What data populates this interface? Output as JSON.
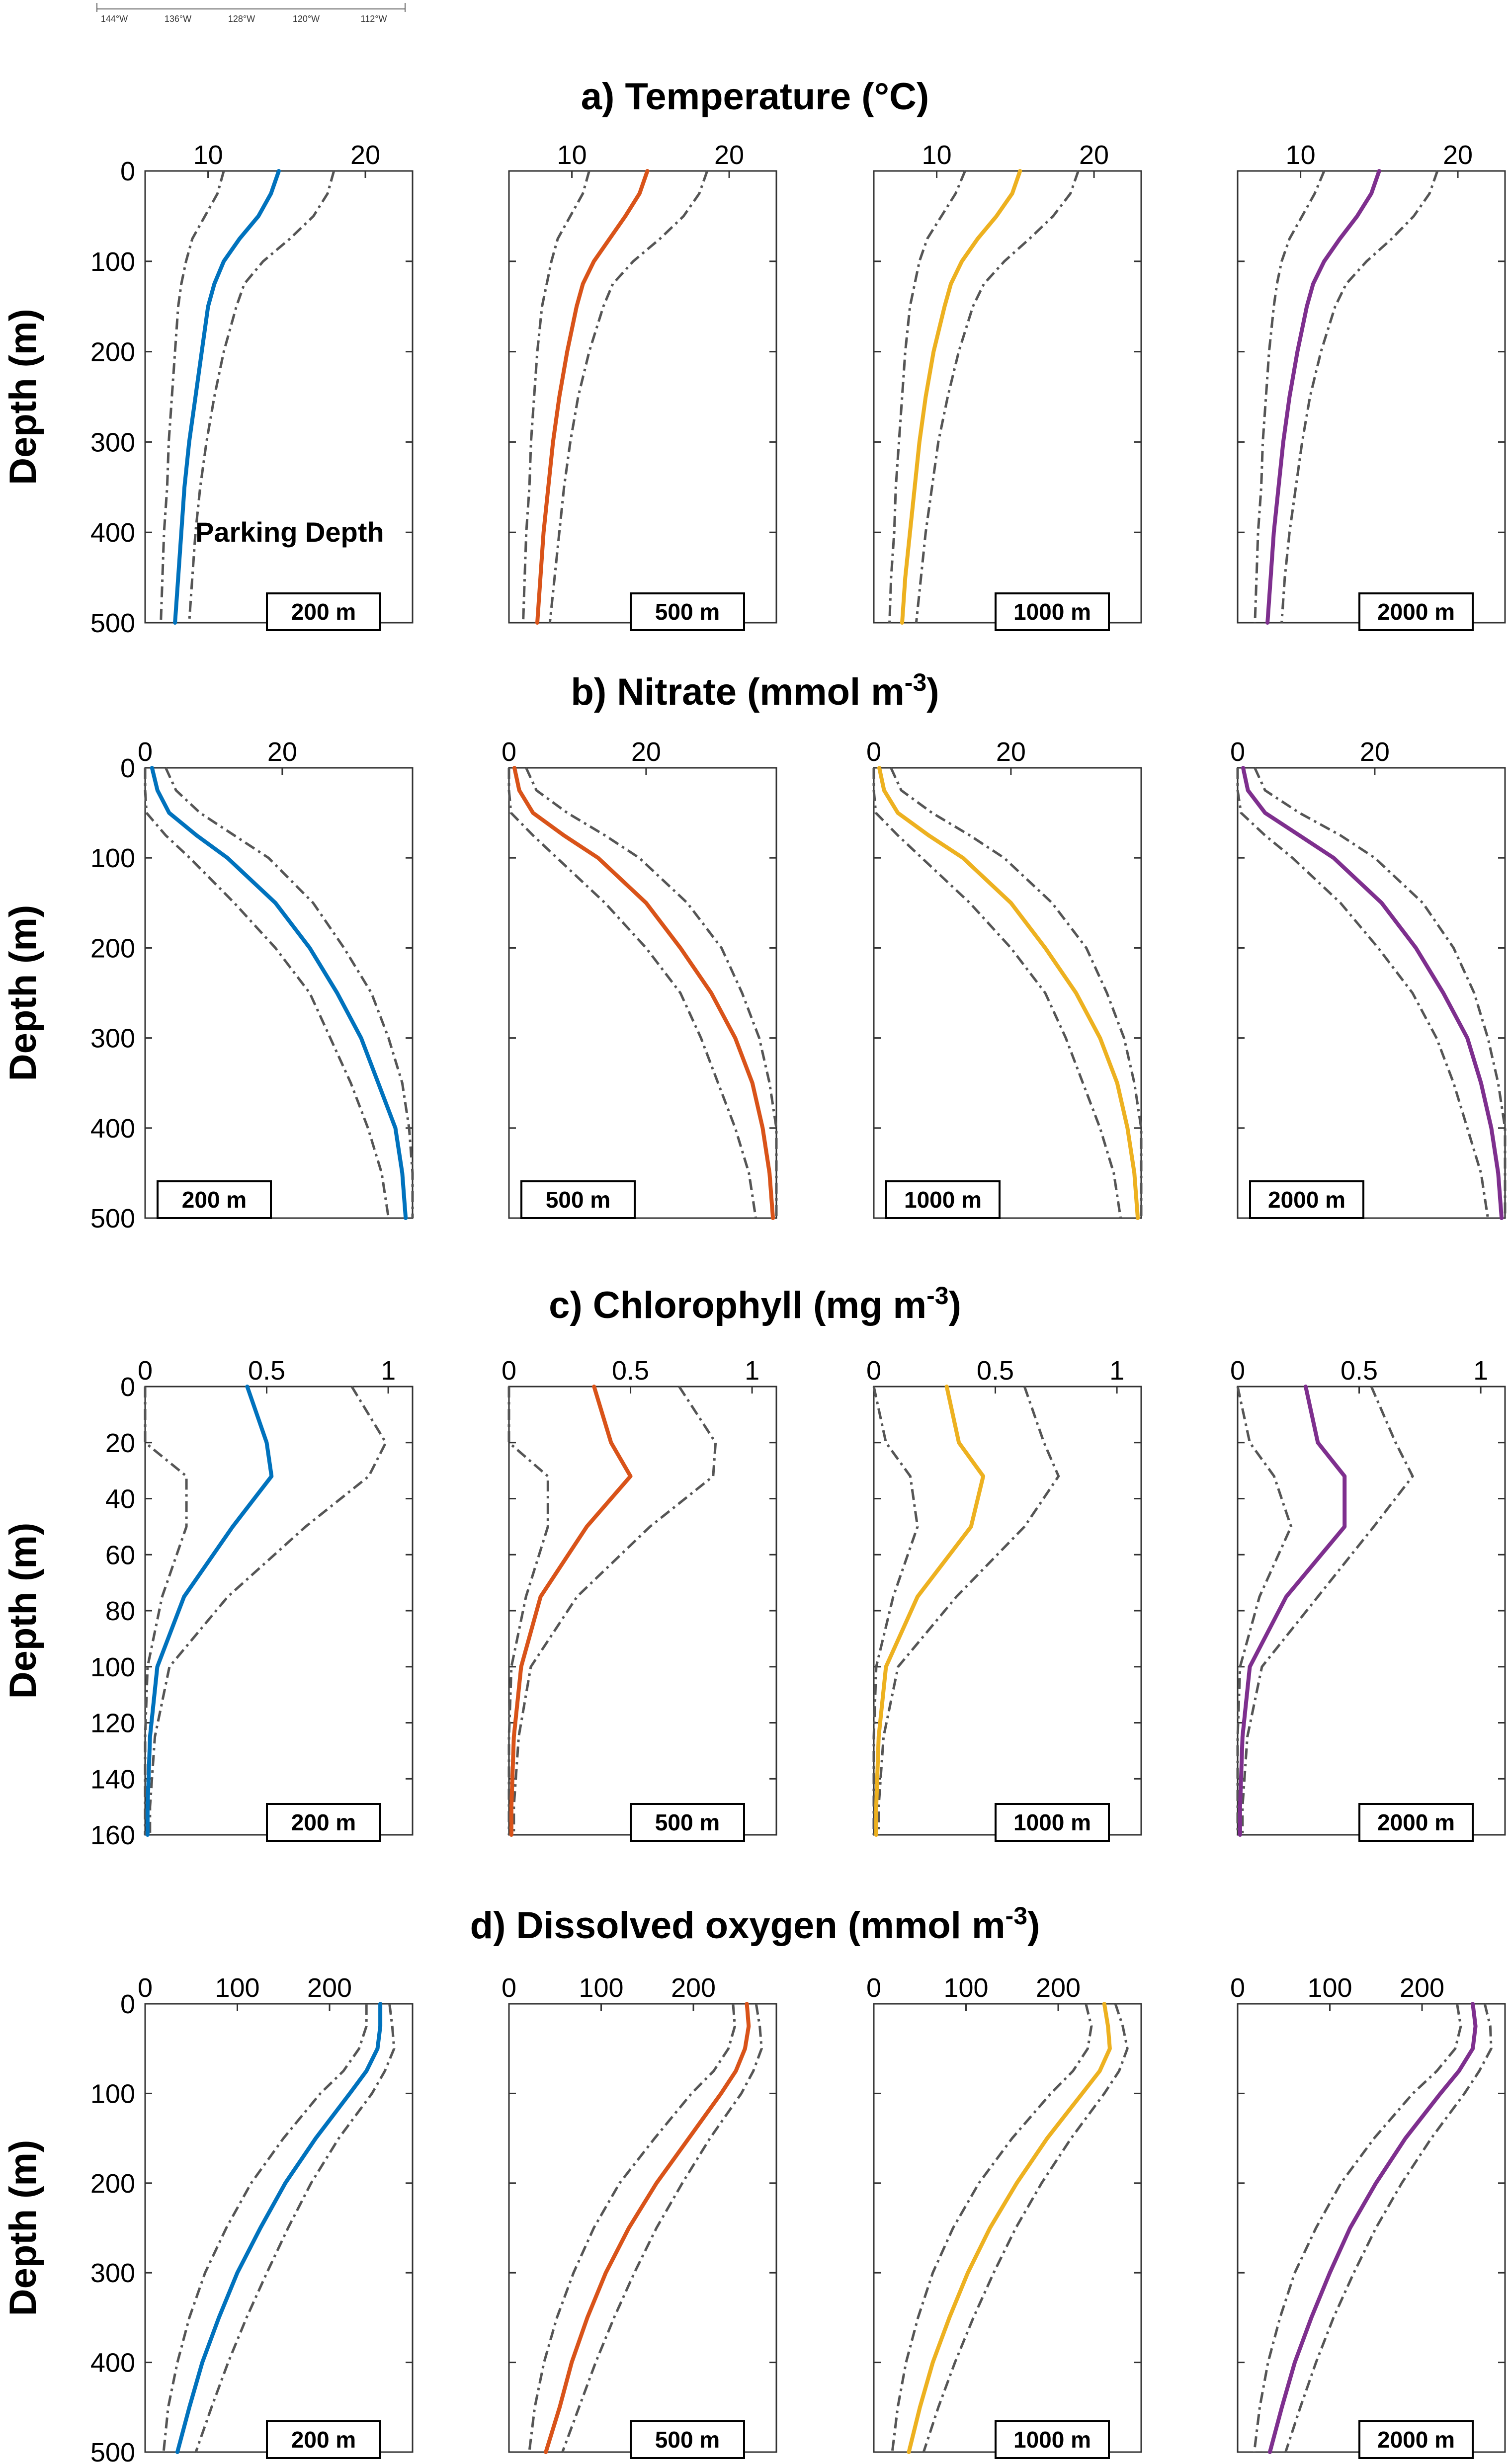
{
  "map_scale": {
    "labels": [
      "144°W",
      "136°W",
      "128°W",
      "120°W",
      "112°W"
    ]
  },
  "parking_label": "Parking Depth",
  "depth_labels": [
    "200 m",
    "500 m",
    "1000 m",
    "2000 m"
  ],
  "colors": {
    "200 m": "#0072BD",
    "500 m": "#D95319",
    "1000 m": "#EDB120",
    "2000 m": "#7E2F8E",
    "bounds": "#555555"
  },
  "chart_data": [
    {
      "type": "line",
      "title": "a) Temperature (°C)",
      "title_sup": "",
      "ylabel": "Depth (m)",
      "xlim": [
        6,
        23
      ],
      "ylim": [
        0,
        500
      ],
      "xticks": [
        10,
        20
      ],
      "yticks": [
        0,
        100,
        200,
        300,
        400,
        500
      ],
      "depth": [
        0,
        25,
        50,
        75,
        100,
        125,
        150,
        200,
        250,
        300,
        350,
        400,
        450,
        500
      ],
      "series": [
        {
          "name": "200 m",
          "mean": [
            14.5,
            14.0,
            13.2,
            12.0,
            11.0,
            10.4,
            10.0,
            9.6,
            9.2,
            8.8,
            8.5,
            8.3,
            8.1,
            7.9
          ],
          "lower": [
            11.0,
            10.6,
            9.8,
            9.0,
            8.6,
            8.3,
            8.1,
            7.9,
            7.7,
            7.5,
            7.4,
            7.2,
            7.1,
            7.0
          ],
          "upper": [
            18.0,
            17.6,
            16.7,
            15.2,
            13.5,
            12.3,
            11.8,
            11.0,
            10.4,
            9.9,
            9.5,
            9.2,
            9.0,
            8.8
          ]
        },
        {
          "name": "500 m",
          "mean": [
            14.8,
            14.3,
            13.4,
            12.4,
            11.4,
            10.7,
            10.3,
            9.7,
            9.2,
            8.8,
            8.5,
            8.2,
            8.0,
            7.8
          ],
          "lower": [
            11.1,
            10.7,
            9.9,
            9.1,
            8.7,
            8.4,
            8.1,
            7.8,
            7.6,
            7.4,
            7.3,
            7.1,
            7.0,
            6.9
          ],
          "upper": [
            18.6,
            18.1,
            17.1,
            15.6,
            13.9,
            12.6,
            12.0,
            11.1,
            10.4,
            9.9,
            9.5,
            9.2,
            8.9,
            8.6
          ]
        },
        {
          "name": "1000 m",
          "mean": [
            15.3,
            14.8,
            13.8,
            12.6,
            11.6,
            10.9,
            10.5,
            9.8,
            9.3,
            8.9,
            8.6,
            8.3,
            8.0,
            7.8
          ],
          "lower": [
            11.8,
            11.2,
            10.3,
            9.4,
            8.9,
            8.6,
            8.3,
            8.0,
            7.8,
            7.6,
            7.4,
            7.3,
            7.1,
            7.0
          ],
          "upper": [
            19.0,
            18.5,
            17.4,
            15.9,
            14.3,
            13.0,
            12.3,
            11.4,
            10.7,
            10.1,
            9.7,
            9.3,
            9.0,
            8.7
          ]
        },
        {
          "name": "2000 m",
          "mean": [
            15.0,
            14.5,
            13.6,
            12.5,
            11.5,
            10.8,
            10.4,
            9.8,
            9.3,
            8.9,
            8.6,
            8.3,
            8.1,
            7.9
          ],
          "lower": [
            11.5,
            10.9,
            10.1,
            9.3,
            8.8,
            8.5,
            8.3,
            8.0,
            7.8,
            7.6,
            7.5,
            7.3,
            7.2,
            7.1
          ],
          "upper": [
            18.7,
            18.2,
            17.2,
            15.8,
            14.2,
            12.9,
            12.2,
            11.3,
            10.6,
            10.1,
            9.7,
            9.3,
            9.0,
            8.8
          ]
        }
      ]
    },
    {
      "type": "line",
      "title": "b) Nitrate (mmol m",
      "title_sup": "-3",
      "title_end": ")",
      "ylabel": "Depth (m)",
      "xlim": [
        0,
        39
      ],
      "ylim": [
        0,
        500
      ],
      "xticks": [
        0,
        20
      ],
      "yticks": [
        0,
        100,
        200,
        300,
        400,
        500
      ],
      "depth": [
        0,
        25,
        50,
        75,
        100,
        150,
        200,
        250,
        300,
        350,
        400,
        450,
        500
      ],
      "series": [
        {
          "name": "200 m",
          "mean": [
            1.0,
            1.8,
            3.5,
            7.5,
            12.0,
            19.0,
            24.0,
            28.0,
            31.5,
            34.0,
            36.5,
            37.5,
            38.0
          ],
          "lower": [
            0.0,
            0.0,
            0.2,
            3.0,
            6.5,
            13.0,
            19.0,
            24.0,
            27.0,
            30.0,
            32.5,
            34.5,
            35.5
          ],
          "upper": [
            3.0,
            4.5,
            8.0,
            13.0,
            18.0,
            24.5,
            29.0,
            33.0,
            35.5,
            37.5,
            38.5,
            39.0,
            39.0
          ]
        },
        {
          "name": "500 m",
          "mean": [
            0.8,
            1.5,
            3.5,
            8.0,
            13.0,
            20.0,
            25.0,
            29.5,
            33.0,
            35.5,
            37.0,
            38.0,
            38.5
          ],
          "lower": [
            0.0,
            0.0,
            0.3,
            3.5,
            7.0,
            14.0,
            20.0,
            25.0,
            28.0,
            30.5,
            33.0,
            35.0,
            36.0
          ],
          "upper": [
            2.5,
            4.0,
            8.5,
            14.0,
            19.0,
            26.0,
            31.0,
            34.0,
            36.5,
            38.0,
            39.0,
            39.0,
            39.0
          ]
        },
        {
          "name": "1000 m",
          "mean": [
            0.8,
            1.5,
            3.5,
            8.0,
            13.0,
            20.0,
            25.0,
            29.5,
            33.0,
            35.5,
            37.0,
            38.0,
            38.5
          ],
          "lower": [
            0.0,
            0.0,
            0.3,
            3.5,
            7.0,
            14.0,
            20.0,
            25.0,
            28.0,
            30.5,
            33.0,
            35.0,
            36.0
          ],
          "upper": [
            2.5,
            4.0,
            8.5,
            14.0,
            19.0,
            26.0,
            31.0,
            34.0,
            36.5,
            38.0,
            39.0,
            39.0,
            39.0
          ]
        },
        {
          "name": "2000 m",
          "mean": [
            0.8,
            1.5,
            4.0,
            9.0,
            14.0,
            21.0,
            26.0,
            30.0,
            33.5,
            35.5,
            37.0,
            38.0,
            38.5
          ],
          "lower": [
            0.0,
            0.0,
            0.5,
            4.0,
            8.0,
            15.0,
            20.5,
            25.5,
            29.0,
            31.5,
            33.5,
            35.5,
            36.5
          ],
          "upper": [
            2.5,
            4.0,
            9.0,
            15.0,
            20.0,
            27.0,
            31.5,
            34.5,
            36.5,
            38.0,
            39.0,
            39.0,
            39.0
          ]
        }
      ]
    },
    {
      "type": "line",
      "title": "c) Chlorophyll (mg m",
      "title_sup": "-3",
      "title_end": ")",
      "ylabel": "Depth (m)",
      "xlim": [
        0,
        1.1
      ],
      "ylim": [
        0,
        160
      ],
      "xticks": [
        0,
        0.5,
        1
      ],
      "yticks": [
        0,
        20,
        40,
        60,
        80,
        100,
        120,
        140,
        160
      ],
      "depth": [
        0,
        20,
        32,
        50,
        75,
        100,
        125,
        150,
        160
      ],
      "series": [
        {
          "name": "200 m",
          "mean": [
            0.42,
            0.5,
            0.52,
            0.36,
            0.16,
            0.05,
            0.02,
            0.01,
            0.01
          ],
          "lower": [
            0.0,
            0.0,
            0.17,
            0.17,
            0.07,
            0.01,
            0.0,
            0.0,
            0.0
          ],
          "upper": [
            0.85,
            0.99,
            0.92,
            0.66,
            0.34,
            0.1,
            0.04,
            0.02,
            0.02
          ]
        },
        {
          "name": "500 m",
          "mean": [
            0.35,
            0.42,
            0.5,
            0.32,
            0.13,
            0.05,
            0.02,
            0.01,
            0.01
          ],
          "lower": [
            0.0,
            0.0,
            0.16,
            0.16,
            0.07,
            0.01,
            0.0,
            0.0,
            0.0
          ],
          "upper": [
            0.7,
            0.85,
            0.84,
            0.58,
            0.28,
            0.09,
            0.04,
            0.02,
            0.02
          ]
        },
        {
          "name": "1000 m",
          "mean": [
            0.3,
            0.35,
            0.45,
            0.4,
            0.18,
            0.05,
            0.02,
            0.01,
            0.01
          ],
          "lower": [
            0.0,
            0.05,
            0.15,
            0.18,
            0.08,
            0.01,
            0.0,
            0.0,
            0.0
          ],
          "upper": [
            0.62,
            0.7,
            0.76,
            0.62,
            0.34,
            0.1,
            0.04,
            0.02,
            0.02
          ]
        },
        {
          "name": "2000 m",
          "mean": [
            0.28,
            0.33,
            0.44,
            0.44,
            0.2,
            0.05,
            0.02,
            0.01,
            0.01
          ],
          "lower": [
            0.0,
            0.05,
            0.15,
            0.22,
            0.09,
            0.01,
            0.0,
            0.0,
            0.0
          ],
          "upper": [
            0.55,
            0.65,
            0.72,
            0.56,
            0.33,
            0.1,
            0.04,
            0.02,
            0.02
          ]
        }
      ]
    },
    {
      "type": "line",
      "title": "d) Dissolved oxygen (mmol m",
      "title_sup": "-3",
      "title_end": ")",
      "ylabel": "Depth (m)",
      "xlim": [
        0,
        290
      ],
      "ylim": [
        0,
        500
      ],
      "xticks": [
        0,
        100,
        200
      ],
      "yticks": [
        0,
        100,
        200,
        300,
        400,
        500
      ],
      "depth": [
        0,
        25,
        50,
        75,
        100,
        150,
        200,
        250,
        300,
        350,
        400,
        450,
        500
      ],
      "series": [
        {
          "name": "200 m",
          "mean": [
            255,
            255,
            252,
            240,
            222,
            185,
            152,
            125,
            100,
            80,
            62,
            48,
            35
          ],
          "lower": [
            240,
            240,
            232,
            215,
            190,
            150,
            115,
            88,
            65,
            48,
            35,
            25,
            20
          ],
          "upper": [
            265,
            268,
            270,
            260,
            246,
            210,
            180,
            155,
            132,
            110,
            90,
            72,
            55
          ]
        },
        {
          "name": "500 m",
          "mean": [
            258,
            260,
            256,
            246,
            230,
            195,
            160,
            130,
            105,
            85,
            68,
            55,
            40
          ],
          "lower": [
            243,
            245,
            238,
            222,
            198,
            158,
            120,
            92,
            70,
            52,
            38,
            28,
            22
          ],
          "upper": [
            268,
            272,
            274,
            265,
            252,
            218,
            188,
            160,
            136,
            114,
            94,
            76,
            58
          ]
        },
        {
          "name": "1000 m",
          "mean": [
            250,
            254,
            256,
            245,
            226,
            188,
            155,
            126,
            102,
            82,
            64,
            50,
            38
          ],
          "lower": [
            230,
            236,
            232,
            216,
            192,
            150,
            114,
            86,
            64,
            48,
            35,
            26,
            20
          ],
          "upper": [
            262,
            270,
            275,
            266,
            250,
            214,
            182,
            154,
            130,
            108,
            88,
            70,
            54
          ]
        },
        {
          "name": "2000 m",
          "mean": [
            255,
            258,
            255,
            240,
            220,
            182,
            150,
            122,
            100,
            80,
            62,
            48,
            35
          ],
          "lower": [
            238,
            242,
            236,
            216,
            190,
            148,
            112,
            85,
            62,
            46,
            33,
            24,
            18
          ],
          "upper": [
            268,
            274,
            275,
            262,
            246,
            210,
            178,
            150,
            126,
            104,
            85,
            68,
            52
          ]
        }
      ]
    }
  ]
}
